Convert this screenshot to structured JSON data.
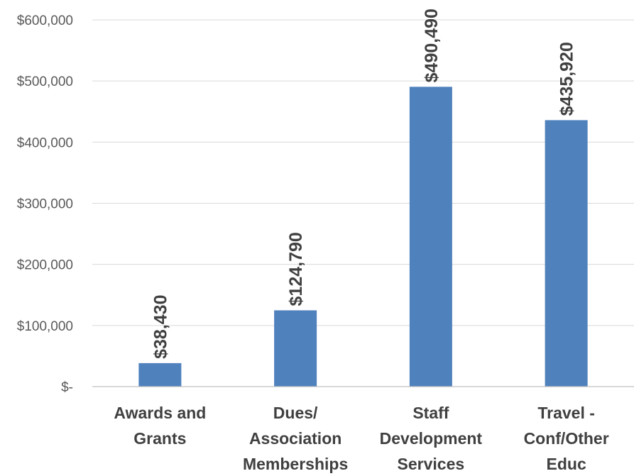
{
  "chart_data": {
    "type": "bar",
    "categories": [
      [
        "Awards and",
        "Grants"
      ],
      [
        "Dues/",
        "Association",
        "Memberships"
      ],
      [
        "Staff",
        "Development",
        "Services"
      ],
      [
        "Travel -",
        "Conf/Other",
        "Educ"
      ]
    ],
    "values": [
      38430,
      124790,
      490490,
      435920
    ],
    "data_labels": [
      "$38,430",
      "$124,790",
      "$490,490",
      "$435,920"
    ],
    "y_ticks": [
      0,
      100000,
      200000,
      300000,
      400000,
      500000,
      600000
    ],
    "y_tick_labels": [
      "$-",
      "$100,000",
      "$200,000",
      "$300,000",
      "$400,000",
      "$500,000",
      "$600,000"
    ],
    "ylim": [
      0,
      600000
    ],
    "grid": true,
    "legend": "none",
    "bar_color": "#4f81bd",
    "title": "",
    "xlabel": "",
    "ylabel": ""
  }
}
